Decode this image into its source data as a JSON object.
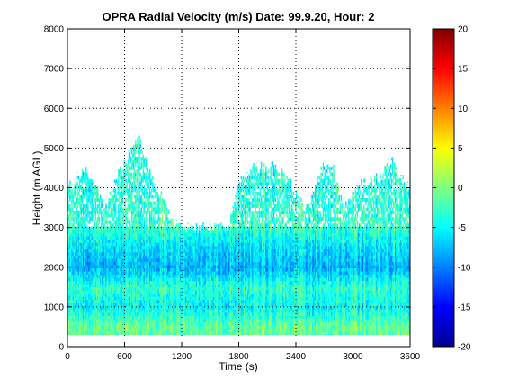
{
  "chart_data": {
    "type": "heatmap",
    "title": "OPRA Radial Velocity (m/s)  Date: 99.9.20, Hour: 2",
    "xlabel": "Time (s)",
    "ylabel": "Height (m AGL)",
    "xlim": [
      0,
      3600
    ],
    "ylim": [
      0,
      8000
    ],
    "x_ticks": [
      "0",
      "600",
      "1200",
      "1800",
      "2400",
      "3000",
      "3600"
    ],
    "y_ticks": [
      "0",
      "1000",
      "2000",
      "3000",
      "4000",
      "5000",
      "6000",
      "7000",
      "8000"
    ],
    "grid": true,
    "colorbar": {
      "colormap": "jet",
      "clim": [
        -20,
        20
      ],
      "ticks": [
        "-20",
        "-15",
        "-10",
        "-5",
        "0",
        "5",
        "10",
        "15",
        "20"
      ]
    },
    "data_base_height_m": 300,
    "data_top_height_m": [
      {
        "time_s": 0,
        "height_m": 4100
      },
      {
        "time_s": 60,
        "height_m": 3950
      },
      {
        "time_s": 120,
        "height_m": 4350
      },
      {
        "time_s": 200,
        "height_m": 4450
      },
      {
        "time_s": 300,
        "height_m": 4000
      },
      {
        "time_s": 400,
        "height_m": 3500
      },
      {
        "time_s": 500,
        "height_m": 4200
      },
      {
        "time_s": 600,
        "height_m": 4600
      },
      {
        "time_s": 700,
        "height_m": 5100
      },
      {
        "time_s": 760,
        "height_m": 5250
      },
      {
        "time_s": 820,
        "height_m": 4700
      },
      {
        "time_s": 900,
        "height_m": 4200
      },
      {
        "time_s": 1000,
        "height_m": 3700
      },
      {
        "time_s": 1100,
        "height_m": 3200
      },
      {
        "time_s": 1200,
        "height_m": 3000
      },
      {
        "time_s": 1300,
        "height_m": 3000
      },
      {
        "time_s": 1500,
        "height_m": 3000
      },
      {
        "time_s": 1700,
        "height_m": 3050
      },
      {
        "time_s": 1800,
        "height_m": 4100
      },
      {
        "time_s": 1900,
        "height_m": 4450
      },
      {
        "time_s": 2000,
        "height_m": 4500
      },
      {
        "time_s": 2150,
        "height_m": 4550
      },
      {
        "time_s": 2300,
        "height_m": 4350
      },
      {
        "time_s": 2400,
        "height_m": 3800
      },
      {
        "time_s": 2500,
        "height_m": 3500
      },
      {
        "time_s": 2600,
        "height_m": 4000
      },
      {
        "time_s": 2700,
        "height_m": 4600
      },
      {
        "time_s": 2800,
        "height_m": 4450
      },
      {
        "time_s": 2900,
        "height_m": 3400
      },
      {
        "time_s": 3000,
        "height_m": 3900
      },
      {
        "time_s": 3100,
        "height_m": 4100
      },
      {
        "time_s": 3200,
        "height_m": 4150
      },
      {
        "time_s": 3300,
        "height_m": 4300
      },
      {
        "time_s": 3400,
        "height_m": 4700
      },
      {
        "time_s": 3500,
        "height_m": 4250
      },
      {
        "time_s": 3600,
        "height_m": 4000
      }
    ],
    "typical_velocity_m_s": [
      {
        "height_m": 500,
        "velocity_m_s": -1
      },
      {
        "height_m": 1000,
        "velocity_m_s": -5
      },
      {
        "height_m": 1500,
        "velocity_m_s": -3
      },
      {
        "height_m": 2000,
        "velocity_m_s": -8
      },
      {
        "height_m": 2500,
        "velocity_m_s": -6
      },
      {
        "height_m": 3000,
        "velocity_m_s": -3
      },
      {
        "height_m": 4000,
        "velocity_m_s": -4
      }
    ]
  }
}
